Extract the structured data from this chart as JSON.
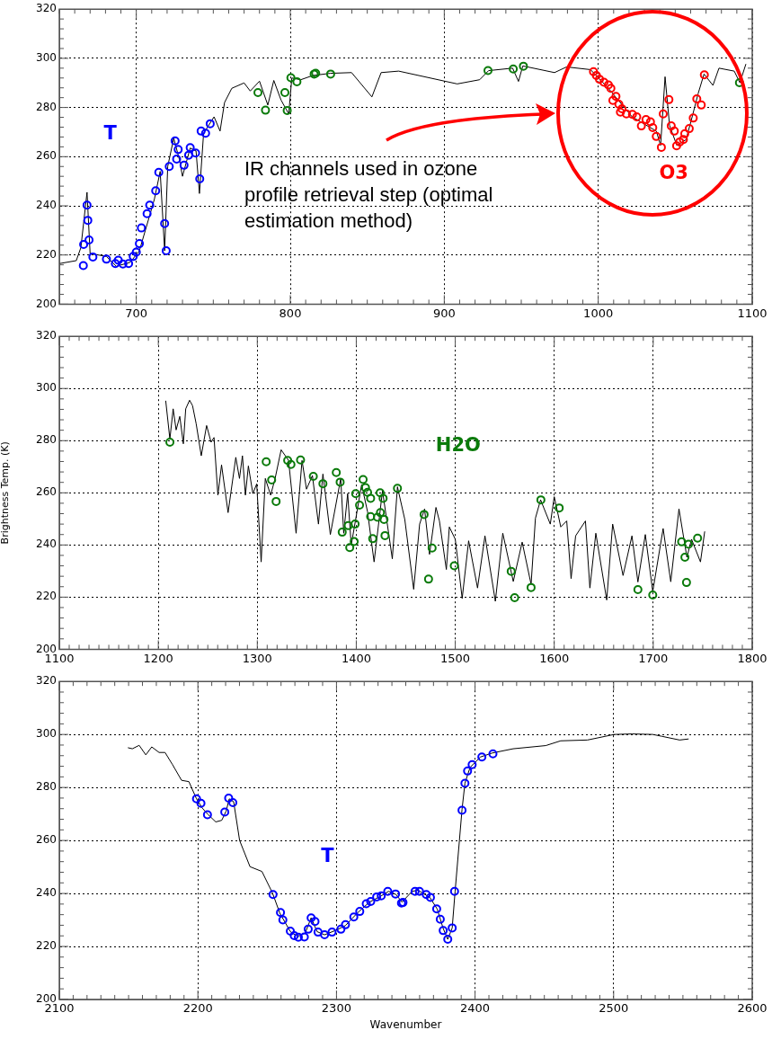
{
  "chart_data": [
    {
      "type": "line",
      "xlim": [
        650,
        1100
      ],
      "xticks": [
        700,
        800,
        900,
        1000,
        1100
      ],
      "ylim": [
        200,
        320
      ],
      "yticks": [
        200,
        220,
        240,
        260,
        280,
        300,
        320
      ],
      "grid": true,
      "annotations": [
        "IR channels used in ozone profile retrieval step (optimal estimation method)"
      ],
      "series": [
        {
          "color": "#000000",
          "x": [
            650,
            661,
            664,
            668,
            670,
            680.6,
            687,
            696,
            702,
            711.7,
            715.5,
            718.4,
            720.4,
            724.3,
            728,
            730,
            735,
            738.8,
            741,
            743.7,
            750.5,
            754.4,
            757.3,
            762,
            770,
            774,
            780,
            785.4,
            789.3,
            794,
            799,
            801,
            806.8,
            814.6,
            826,
            839.8,
            853,
            859,
            870.4,
            908.4,
            923,
            928.8,
            944.4,
            948.2,
            951,
            971.6,
            979.4,
            995,
            1006.6,
            1022,
            1037.7,
            1040.5,
            1043.4,
            1046.3,
            1051,
            1057,
            1061,
            1064.8,
            1068.7,
            1074.5,
            1078.4,
            1088.3,
            1092,
            1095.9
          ],
          "values": [
            216.5,
            217.7,
            223,
            245.5,
            220.6,
            219.4,
            215.4,
            217,
            221.7,
            242.6,
            254,
            221.7,
            256,
            267.5,
            258.8,
            252,
            263.5,
            262.3,
            245,
            269.5,
            276.2,
            270.4,
            282,
            287.8,
            290,
            286.7,
            290.7,
            281,
            291,
            283,
            277.4,
            292,
            291.3,
            293,
            293.9,
            294.2,
            284.3,
            294.2,
            294.8,
            289.6,
            291.3,
            295,
            296,
            290.6,
            296.9,
            294.2,
            296.5,
            295.4,
            287.8,
            276.2,
            270.4,
            264.6,
            292.5,
            272.8,
            264.6,
            266.9,
            276.2,
            285.5,
            293.6,
            289,
            296,
            294.8,
            290.1,
            297.7
          ]
        },
        {
          "type": "scatter",
          "name": "T",
          "color": "#0000ff",
          "marker": "circle",
          "x": [
            665.6,
            665.8,
            668,
            668.5,
            669.3,
            671.8,
            680.6,
            686.4,
            688.3,
            691.3,
            695,
            698,
            700,
            702,
            703.3,
            707,
            708.7,
            712.6,
            714.6,
            718.4,
            719.4,
            721.4,
            725.2,
            727.2,
            726.2,
            731,
            734,
            735,
            738.5,
            741.2,
            742.1,
            745,
            748
          ],
          "values": [
            215.7,
            224.3,
            240.3,
            234.1,
            226.1,
            219.2,
            218.3,
            216.5,
            217.9,
            216.3,
            216.5,
            219.4,
            221.2,
            224.6,
            231,
            236.8,
            240.3,
            246.1,
            253.6,
            232.8,
            221.7,
            256,
            266.4,
            262.9,
            259,
            256.5,
            260.6,
            263.7,
            261.5,
            251,
            270.4,
            269.5,
            273.4
          ]
        },
        {
          "type": "scatter",
          "color": "#0a7a0a",
          "marker": "circle",
          "x": [
            779,
            783.9,
            796.5,
            798,
            800.4,
            804.3,
            815.5,
            816.5,
            826.2,
            928.4,
            944.8,
            951.4,
            1091.7
          ],
          "values": [
            286.1,
            278.9,
            286.1,
            278.8,
            292.1,
            290.5,
            293.6,
            293.9,
            293.6,
            295,
            295.7,
            296.8,
            290.1
          ]
        },
        {
          "type": "scatter",
          "name": "O3",
          "color": "#ff0000",
          "marker": "circle",
          "x": [
            996.9,
            998.8,
            1000.8,
            1003.7,
            1006.6,
            1008.2,
            1011.5,
            1009.5,
            1013.4,
            1015.4,
            1014.4,
            1018.3,
            1022.2,
            1025,
            1028,
            1031,
            1033.9,
            1035.4,
            1037.7,
            1041,
            1042.2,
            1045.9,
            1047.4,
            1049.4,
            1050.9,
            1052.9,
            1055.3,
            1056.2,
            1059.1,
            1061.7,
            1066.9,
            1064,
            1068.9
          ],
          "values": [
            294.6,
            293,
            291.5,
            290.3,
            289.2,
            287.8,
            284.5,
            282.9,
            281.3,
            279.5,
            278.1,
            277.4,
            277.2,
            276.2,
            272.5,
            275.1,
            274.2,
            271.8,
            268.2,
            263.8,
            277.4,
            283.2,
            272.5,
            270.4,
            264.4,
            266,
            267,
            269.3,
            271.4,
            275.7,
            281,
            283.5,
            293.3
          ]
        }
      ]
    },
    {
      "type": "line",
      "ylabel": "Brightness Temp. (K)",
      "xlim": [
        1100,
        1800
      ],
      "xticks": [
        1100,
        1200,
        1300,
        1400,
        1500,
        1600,
        1700,
        1800
      ],
      "ylim": [
        200,
        320
      ],
      "yticks": [
        200,
        220,
        240,
        260,
        280,
        300,
        320
      ],
      "grid": true,
      "series": [
        {
          "color": "#000000",
          "x": [
            1207.5,
            1211.7,
            1215,
            1218,
            1221.7,
            1225.3,
            1227.7,
            1231.6,
            1234.6,
            1238.3,
            1243.4,
            1248.8,
            1253.3,
            1256.3,
            1260.2,
            1263.9,
            1270.5,
            1278.3,
            1282,
            1285,
            1288,
            1291,
            1295.5,
            1299.4,
            1303.9,
            1308.1,
            1313.5,
            1318,
            1324.1,
            1331.6,
            1339.2,
            1345.2,
            1349.7,
            1355.7,
            1361.8,
            1366.3,
            1373.8,
            1384.3,
            1387.3,
            1391.3,
            1394.9,
            1405.4,
            1411.4,
            1418,
            1426.5,
            1436.4,
            1441.6,
            1449,
            1458,
            1464,
            1469,
            1474,
            1480.5,
            1484,
            1491,
            1494,
            1500,
            1507,
            1513.5,
            1522.5,
            1530,
            1540.5,
            1548,
            1558.6,
            1567.6,
            1576.6,
            1581,
            1586.2,
            1596,
            1600,
            1606.6,
            1612.6,
            1617,
            1621.6,
            1631.5,
            1636,
            1642,
            1653,
            1659,
            1669.5,
            1678.5,
            1684.5,
            1692,
            1699.5,
            1710,
            1717.7,
            1726,
            1734,
            1738.7,
            1747.7,
            1752
          ],
          "values": [
            295.3,
            280.6,
            292.2,
            284.1,
            289.3,
            278.8,
            292.2,
            295.5,
            293.4,
            286.4,
            274.2,
            285.8,
            279.4,
            281.2,
            259.1,
            270.7,
            252.4,
            273.6,
            265.5,
            274.2,
            259.1,
            270.3,
            259.7,
            263.4,
            233.5,
            265.5,
            259.1,
            265.5,
            276.5,
            272.4,
            244.5,
            272.4,
            261.4,
            266.6,
            248,
            267.2,
            244,
            265.5,
            244.5,
            259.7,
            239.9,
            263.1,
            252.7,
            233.5,
            260.8,
            234.7,
            262.3,
            249.8,
            223,
            248,
            253.8,
            236.4,
            254.4,
            249.2,
            230.6,
            246.9,
            242.2,
            219.5,
            241.6,
            223.5,
            243.5,
            218.4,
            244.5,
            226,
            241.1,
            224.9,
            250.3,
            257.3,
            248,
            258.5,
            246.9,
            249.2,
            227.1,
            243.5,
            249.2,
            223.5,
            244.5,
            218.9,
            248,
            228.3,
            243.5,
            225.8,
            244,
            222.1,
            246.3,
            225.9,
            253.8,
            235.3,
            242.2,
            233.5,
            245.2
          ]
        },
        {
          "type": "scatter",
          "name": "H2O",
          "color": "#0a7a0a",
          "marker": "circle",
          "x": [
            1211.7,
            1309,
            1314.5,
            1319,
            1330.7,
            1334,
            1343.7,
            1356.6,
            1366.3,
            1379.8,
            1383.7,
            1385.8,
            1391.9,
            1393.4,
            1397.9,
            1398.8,
            1399.4,
            1403.3,
            1406.9,
            1409.3,
            1411.4,
            1414.5,
            1414.5,
            1416.6,
            1424.1,
            1424.4,
            1427.1,
            1428,
            1429,
            1421.4,
            1441.6,
            1468.5,
            1476.6,
            1473,
            1499,
            1556.5,
            1560,
            1576.6,
            1586.5,
            1605,
            1684.5,
            1699.5,
            1728.7,
            1735.6,
            1732,
            1733.6,
            1744.8
          ],
          "values": [
            279.4,
            271.9,
            264.9,
            256.7,
            272.4,
            270.9,
            272.6,
            266.3,
            263.5,
            267.8,
            264.1,
            244.9,
            247.4,
            239,
            241.3,
            248,
            259.7,
            255.3,
            265.1,
            262,
            260.2,
            257.9,
            250.9,
            242.4,
            260,
            252.4,
            257.9,
            249.8,
            243.6,
            250.6,
            261.7,
            251.7,
            238.8,
            226.9,
            232,
            229.9,
            219.8,
            223.7,
            257.3,
            254.2,
            222.9,
            220.8,
            241.2,
            240.3,
            235.3,
            225.6,
            242.6
          ]
        }
      ]
    },
    {
      "type": "line",
      "xlabel": "Wavenumber",
      "xlim": [
        2100,
        2600
      ],
      "xticks": [
        2100,
        2200,
        2300,
        2400,
        2500,
        2600
      ],
      "ylim": [
        200,
        320
      ],
      "yticks": [
        200,
        220,
        240,
        260,
        280,
        300,
        320
      ],
      "grid": true,
      "series": [
        {
          "color": "#000000",
          "x": [
            2149.5,
            2152.7,
            2157.6,
            2162.4,
            2166.7,
            2172,
            2176.3,
            2181.7,
            2188.2,
            2193.5,
            2199,
            2203.2,
            2207.5,
            2212.9,
            2217.2,
            2220.4,
            2222.6,
            2225.8,
            2230.1,
            2237.6,
            2246.2,
            2253.8,
            2259.1,
            2266.7,
            2272,
            2277.4,
            2281.7,
            2286,
            2291.4,
            2300,
            2306.5,
            2315,
            2323.7,
            2332.3,
            2337.6,
            2343,
            2347.3,
            2354.5,
            2358.8,
            2367.4,
            2372.7,
            2377,
            2380.3,
            2383.5,
            2385.6,
            2390.6,
            2392.7,
            2396.4,
            2403.9,
            2412.4,
            2427.5,
            2451,
            2461.8,
            2481.1,
            2500.4,
            2513.3,
            2528.3,
            2534.8,
            2547.6,
            2554.1
          ],
          "values": [
            295,
            294.6,
            295.9,
            292.3,
            295.3,
            293.2,
            293.2,
            288.6,
            282.7,
            282.2,
            275.7,
            272.2,
            269.7,
            267,
            267.6,
            271.1,
            275.7,
            274.6,
            260,
            250.1,
            248.3,
            240.2,
            232.6,
            225.6,
            223.8,
            225,
            230.8,
            225.6,
            224.4,
            226.2,
            227.9,
            232.6,
            236.7,
            239.1,
            240.8,
            239.6,
            236.7,
            240.8,
            241.2,
            238.5,
            234.1,
            226.8,
            222.7,
            227,
            240.8,
            271.7,
            281.6,
            287.6,
            291.5,
            293,
            294.6,
            295.8,
            297.6,
            297.9,
            300,
            300.2,
            300,
            299.3,
            297.9,
            298.3
          ]
        },
        {
          "type": "scatter",
          "name": "T",
          "color": "#0000ff",
          "marker": "circle",
          "x": [
            2199,
            2202.2,
            2206.9,
            2219.4,
            2222.2,
            2225.2,
            2254.2,
            2259.6,
            2261.3,
            2266.7,
            2269.5,
            2272.5,
            2276.8,
            2279.6,
            2281.7,
            2284.5,
            2286.7,
            2291.4,
            2296.8,
            2303.2,
            2306.5,
            2312.5,
            2316.8,
            2321.5,
            2324.7,
            2329,
            2332.3,
            2337,
            2342.6,
            2346.9,
            2348,
            2356.7,
            2359.9,
            2364.8,
            2367.8,
            2372.3,
            2374.9,
            2377,
            2380.3,
            2383.5,
            2385.2,
            2390.6,
            2392.7,
            2394.6,
            2397.9,
            2404.9,
            2412.9
          ],
          "values": [
            275.7,
            274,
            269.7,
            270.7,
            276,
            274.3,
            239.6,
            232.8,
            230,
            225.8,
            224.1,
            223.5,
            223.6,
            226.5,
            230.8,
            229.4,
            225.4,
            224.4,
            225.4,
            226.5,
            228.2,
            231.1,
            233.2,
            236.1,
            237,
            238.7,
            239.1,
            240.8,
            239.8,
            236.4,
            236.6,
            240.8,
            240.8,
            239.6,
            238.5,
            234.2,
            230.3,
            226,
            222.7,
            227,
            240.8,
            271.4,
            281.6,
            286.2,
            288.6,
            291.5,
            292.7
          ]
        }
      ]
    }
  ]
}
